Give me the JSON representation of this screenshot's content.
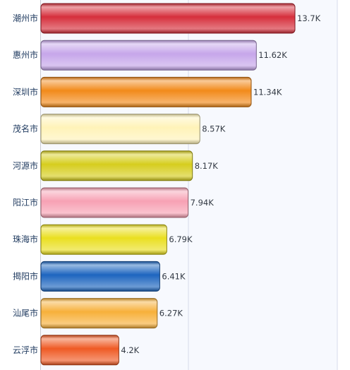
{
  "chart_data": {
    "type": "bar",
    "orientation": "horizontal",
    "title": "",
    "xlabel": "",
    "ylabel": "",
    "categories": [
      "潮州市",
      "惠州市",
      "深圳市",
      "茂名市",
      "河源市",
      "阳江市",
      "珠海市",
      "揭阳市",
      "汕尾市",
      "云浮市"
    ],
    "values": [
      13.7,
      11.62,
      11.34,
      8.57,
      8.17,
      7.94,
      6.79,
      6.41,
      6.27,
      4.2
    ],
    "value_labels": [
      "13.7K",
      "11.62K",
      "11.34K",
      "8.57K",
      "8.17K",
      "7.94K",
      "6.79K",
      "6.41K",
      "6.27K",
      "4.2K"
    ],
    "unit": "K",
    "xlim": [
      0,
      16
    ],
    "grid": true,
    "legend": "none",
    "colors": [
      "#d62f3c",
      "#c6a6ea",
      "#f28a1a",
      "#fff3b8",
      "#d6cd1e",
      "#f7a1b4",
      "#eadf20",
      "#1d65bf",
      "#f7b03a",
      "#ef5a24"
    ]
  }
}
